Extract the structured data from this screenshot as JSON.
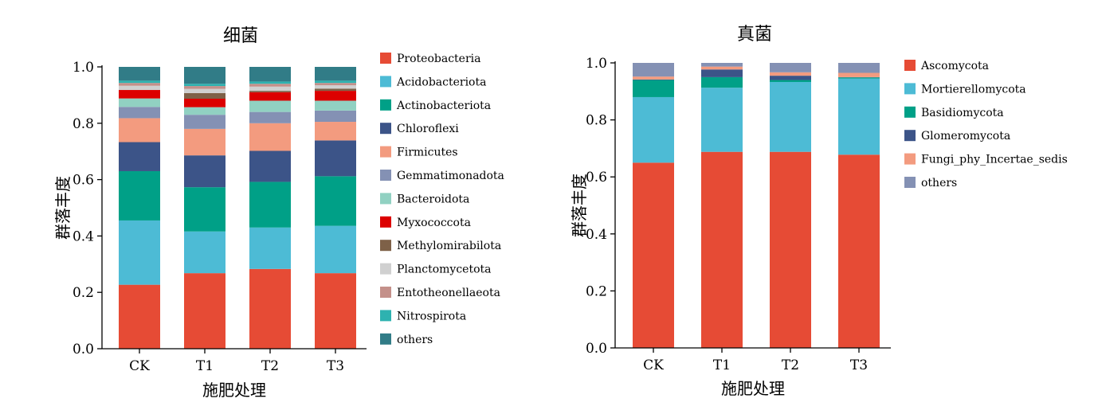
{
  "chart_data": [
    {
      "type": "bar",
      "stacked": true,
      "title": "细菌",
      "xlabel": "施肥处理",
      "ylabel": "群落丰度",
      "ylim": [
        0,
        1
      ],
      "yticks": [
        "0.0",
        "0.2",
        "0.4",
        "0.6",
        "0.8",
        "1.0"
      ],
      "categories": [
        "CK",
        "T1",
        "T2",
        "T3"
      ],
      "legend_position": "right",
      "series": [
        {
          "name": "Proteobacteria",
          "color": "#E64B35",
          "values": [
            0.227,
            0.268,
            0.283,
            0.268
          ]
        },
        {
          "name": "Acidobacteriota",
          "color": "#4DBBD5",
          "values": [
            0.228,
            0.148,
            0.147,
            0.168
          ]
        },
        {
          "name": "Actinobacteriota",
          "color": "#00A087",
          "values": [
            0.175,
            0.157,
            0.162,
            0.176
          ]
        },
        {
          "name": "Chloroflexi",
          "color": "#3C5488",
          "values": [
            0.103,
            0.113,
            0.11,
            0.127
          ]
        },
        {
          "name": "Firmicutes",
          "color": "#F39B7F",
          "values": [
            0.085,
            0.094,
            0.098,
            0.066
          ]
        },
        {
          "name": "Gemmatimonadota",
          "color": "#8491B4",
          "values": [
            0.04,
            0.05,
            0.04,
            0.04
          ]
        },
        {
          "name": "Bacteroidota",
          "color": "#91D1C2",
          "values": [
            0.03,
            0.027,
            0.04,
            0.035
          ]
        },
        {
          "name": "Myxococcota",
          "color": "#DC0000",
          "values": [
            0.03,
            0.03,
            0.03,
            0.035
          ]
        },
        {
          "name": "Methylomirabilota",
          "color": "#7E6148",
          "values": [
            0.0,
            0.02,
            0.005,
            0.008
          ]
        },
        {
          "name": "Planctomycetota",
          "color": "#D0D0D0",
          "values": [
            0.015,
            0.015,
            0.015,
            0.012
          ]
        },
        {
          "name": "Entotheonellaeota",
          "color": "#C4908A",
          "values": [
            0.01,
            0.01,
            0.01,
            0.008
          ]
        },
        {
          "name": "Nitrospirota",
          "color": "#2EB2B0",
          "values": [
            0.008,
            0.008,
            0.008,
            0.008
          ]
        },
        {
          "name": "others",
          "color": "#317C87",
          "values": [
            0.049,
            0.06,
            0.052,
            0.049
          ]
        }
      ]
    },
    {
      "type": "bar",
      "stacked": true,
      "title": "真菌",
      "xlabel": "施肥处理",
      "ylabel": "群落丰度",
      "ylim": [
        0,
        1
      ],
      "yticks": [
        "0.0",
        "0.2",
        "0.4",
        "0.6",
        "0.8",
        "1.0"
      ],
      "categories": [
        "CK",
        "T1",
        "T2",
        "T3"
      ],
      "legend_position": "right",
      "series": [
        {
          "name": "Ascomycota",
          "color": "#E64B35",
          "values": [
            0.65,
            0.688,
            0.688,
            0.678
          ]
        },
        {
          "name": "Mortierellomycota",
          "color": "#4DBBD5",
          "values": [
            0.23,
            0.225,
            0.245,
            0.267
          ]
        },
        {
          "name": "Basidiomycota",
          "color": "#00A087",
          "values": [
            0.06,
            0.037,
            0.007,
            0.004
          ]
        },
        {
          "name": "Glomeromycota",
          "color": "#3C5488",
          "values": [
            0.002,
            0.027,
            0.015,
            0.001
          ]
        },
        {
          "name": "Fungi_phy_Incertae_sedis",
          "color": "#F39B7F",
          "values": [
            0.01,
            0.01,
            0.012,
            0.015
          ]
        },
        {
          "name": "others",
          "color": "#8491B4",
          "values": [
            0.048,
            0.013,
            0.033,
            0.035
          ]
        }
      ]
    }
  ]
}
